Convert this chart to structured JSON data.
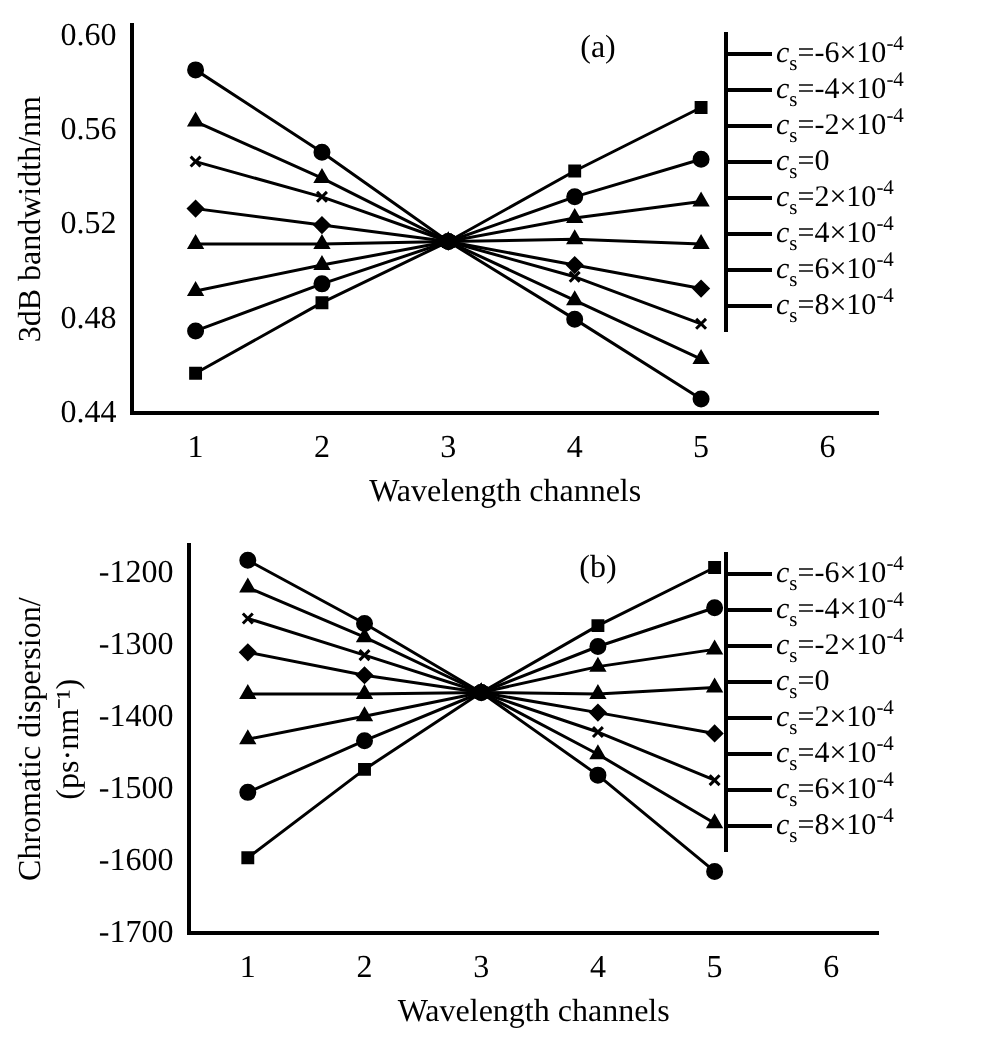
{
  "chart_data": [
    {
      "type": "line",
      "xlabel": "Wavelength channels",
      "ylabel": "3dB bandwidth/nm",
      "x": [
        1,
        2,
        3,
        4,
        5
      ],
      "xlim": [
        0.5,
        6.4
      ],
      "xticks": [
        1,
        2,
        3,
        4,
        5,
        6
      ],
      "ylim": [
        0.44,
        0.605
      ],
      "yticks": [
        {
          "value": 0.44,
          "label": "0.44"
        },
        {
          "value": 0.48,
          "label": "0.48"
        },
        {
          "value": 0.52,
          "label": "0.52"
        },
        {
          "value": 0.56,
          "label": "0.56"
        },
        {
          "value": 0.6,
          "label": "0.60"
        }
      ],
      "legend": "right",
      "annotations": [
        "(a)"
      ],
      "series": [
        {
          "name": "c$_{s}$=-6×10$^{-4}$",
          "color": "#000000",
          "marker": "square",
          "values": [
            0.457,
            0.487,
            0.513,
            0.543,
            0.57
          ]
        },
        {
          "name": "c$_{s}$=-4×10$^{-4}$",
          "color": "#000000",
          "marker": "circle",
          "values": [
            0.475,
            0.495,
            0.513,
            0.532,
            0.548
          ]
        },
        {
          "name": "c$_{s}$=-2×10$^{-4}$",
          "color": "#000000",
          "marker": "triangle",
          "values": [
            0.492,
            0.503,
            0.513,
            0.523,
            0.53
          ]
        },
        {
          "name": "c$_{s}$=0",
          "color": "#000000",
          "marker": "triangle",
          "values": [
            0.512,
            0.512,
            0.513,
            0.514,
            0.512
          ]
        },
        {
          "name": "c$_{s}$=2×10$^{-4}$",
          "color": "#000000",
          "marker": "diamond",
          "values": [
            0.527,
            0.52,
            0.513,
            0.503,
            0.493
          ]
        },
        {
          "name": "c$_{s}$=4×10$^{-4}$",
          "color": "#000000",
          "marker": "cross",
          "values": [
            0.547,
            0.532,
            0.513,
            0.498,
            0.478
          ]
        },
        {
          "name": "c$_{s}$=6×10$^{-4}$",
          "color": "#000000",
          "marker": "triangle",
          "values": [
            0.564,
            0.54,
            0.513,
            0.488,
            0.463
          ]
        },
        {
          "name": "c$_{s}$=8×10$^{-4}$",
          "color": "#000000",
          "marker": "circle",
          "values": [
            0.586,
            0.551,
            0.513,
            0.48,
            0.446
          ]
        }
      ]
    },
    {
      "type": "line",
      "xlabel": "Wavelength channels",
      "ylabel": "Chromatic dispersion/ (ps·nm⁻¹)",
      "x": [
        1,
        2,
        3,
        4,
        5
      ],
      "xlim": [
        0.5,
        6.4
      ],
      "xticks": [
        1,
        2,
        3,
        4,
        5,
        6
      ],
      "ylim": [
        -1700,
        -1160
      ],
      "yticks": [
        -1700,
        -1600,
        -1500,
        -1400,
        -1300,
        -1200
      ],
      "legend": "right",
      "annotations": [
        "(b)"
      ],
      "series": [
        {
          "name": "c$_{s}$=-6×10$^{-4}$",
          "color": "#000000",
          "marker": "square",
          "values": [
            -1595,
            -1472,
            -1365,
            -1272,
            -1191
          ]
        },
        {
          "name": "c$_{s}$=-4×10$^{-4}$",
          "color": "#000000",
          "marker": "circle",
          "values": [
            -1504,
            -1432,
            -1365,
            -1301,
            -1247
          ]
        },
        {
          "name": "c$_{s}$=-2×10$^{-4}$",
          "color": "#000000",
          "marker": "triangle",
          "values": [
            -1430,
            -1398,
            -1365,
            -1329,
            -1305
          ]
        },
        {
          "name": "c$_{s}$=0",
          "color": "#000000",
          "marker": "triangle",
          "values": [
            -1367,
            -1367,
            -1365,
            -1367,
            -1358
          ]
        },
        {
          "name": "c$_{s}$=2×10$^{-4}$",
          "color": "#000000",
          "marker": "diamond",
          "values": [
            -1309,
            -1341,
            -1365,
            -1393,
            -1422
          ]
        },
        {
          "name": "c$_{s}$=4×10$^{-4}$",
          "color": "#000000",
          "marker": "cross",
          "values": [
            -1262,
            -1313,
            -1365,
            -1420,
            -1487
          ]
        },
        {
          "name": "c$_{s}$=6×10$^{-4}$",
          "color": "#000000",
          "marker": "triangle",
          "values": [
            -1219,
            -1288,
            -1365,
            -1451,
            -1547
          ]
        },
        {
          "name": "c$_{s}$=8×10$^{-4}$",
          "color": "#000000",
          "marker": "circle",
          "values": [
            -1181,
            -1269,
            -1365,
            -1480,
            -1614
          ]
        }
      ]
    }
  ]
}
